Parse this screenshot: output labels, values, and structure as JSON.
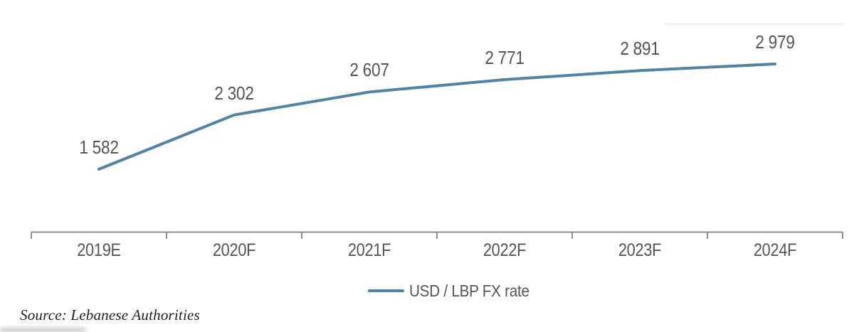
{
  "chart_data": {
    "type": "line",
    "title": "",
    "categories": [
      "2019E",
      "2020F",
      "2021F",
      "2022F",
      "2023F",
      "2024F"
    ],
    "series": [
      {
        "name": "USD / LBP FX rate",
        "values": [
          1582,
          2302,
          2607,
          2771,
          2891,
          2979
        ]
      }
    ],
    "value_labels": [
      "1 582",
      "2 302",
      "2 607",
      "2 771",
      "2 891",
      "2 979"
    ],
    "xlabel": "",
    "ylabel": "",
    "y_axis_visible": false,
    "grid": false,
    "legend_position": "bottom",
    "line_color": "#5282a4",
    "label_color": "#555555",
    "axis_color": "#8f8f8f"
  },
  "legend": {
    "label": "USD / LBP FX rate",
    "swatch_color": "#5282a4"
  },
  "footer": {
    "source": "Source: Lebanese Authorities",
    "source_color": "#1f1f1f"
  }
}
